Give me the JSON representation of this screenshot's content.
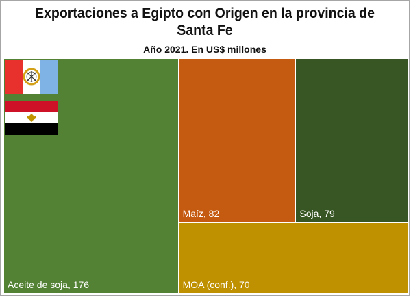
{
  "title": "Exportaciones a Egipto con Origen en la provincia de Santa Fe",
  "subtitle": "Año 2021. En US$ millones",
  "chart_data": {
    "type": "treemap",
    "title": "Exportaciones a Egipto con Origen en la provincia de Santa Fe",
    "subtitle": "Año 2021. En US$ millones",
    "items": [
      {
        "label": "Aceite de soja",
        "value": 176,
        "text": "Aceite de soja, 176",
        "color": "#548235"
      },
      {
        "label": "Maíz",
        "value": 82,
        "text": "Maíz, 82",
        "color": "#c55a11"
      },
      {
        "label": "Soja",
        "value": 79,
        "text": "Soja, 79",
        "color": "#375623"
      },
      {
        "label": "MOA (conf.)",
        "value": 70,
        "text": "MOA (conf.), 70",
        "color": "#bf9000"
      }
    ]
  },
  "flags": [
    {
      "name": "santa-fe-flag",
      "colors": [
        "#e8302c",
        "#ffffff",
        "#7fb2e5"
      ]
    },
    {
      "name": "egypt-flag",
      "colors": [
        "#ce1126",
        "#ffffff",
        "#000000"
      ]
    }
  ]
}
